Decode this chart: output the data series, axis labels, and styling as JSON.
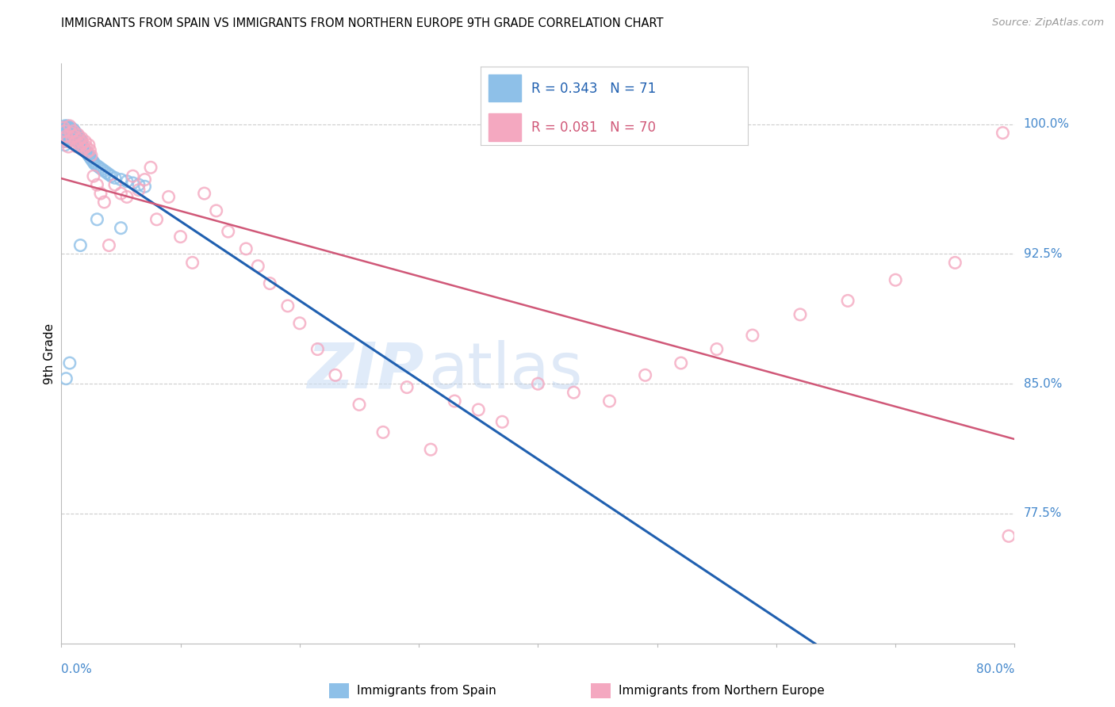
{
  "title": "IMMIGRANTS FROM SPAIN VS IMMIGRANTS FROM NORTHERN EUROPE 9TH GRADE CORRELATION CHART",
  "source": "Source: ZipAtlas.com",
  "ylabel": "9th Grade",
  "legend_r1": "R = 0.343",
  "legend_n1": "N = 71",
  "legend_r2": "R = 0.081",
  "legend_n2": "N = 70",
  "color_spain": "#8ec0e8",
  "color_northern": "#f4a8c0",
  "color_spain_line": "#2060b0",
  "color_northern_line": "#d05878",
  "color_label_blue": "#4488cc",
  "xlim": [
    0.0,
    0.8
  ],
  "ylim": [
    0.7,
    1.035
  ],
  "ytick_vals": [
    1.0,
    0.925,
    0.85,
    0.775
  ],
  "ytick_labels": [
    "100.0%",
    "92.5%",
    "85.0%",
    "77.5%"
  ],
  "spain_x": [
    0.001,
    0.001,
    0.002,
    0.002,
    0.002,
    0.003,
    0.003,
    0.003,
    0.003,
    0.004,
    0.004,
    0.004,
    0.005,
    0.005,
    0.005,
    0.006,
    0.006,
    0.006,
    0.007,
    0.007,
    0.007,
    0.008,
    0.008,
    0.008,
    0.009,
    0.009,
    0.01,
    0.01,
    0.01,
    0.011,
    0.011,
    0.012,
    0.012,
    0.013,
    0.013,
    0.014,
    0.014,
    0.015,
    0.015,
    0.016,
    0.016,
    0.017,
    0.018,
    0.019,
    0.02,
    0.021,
    0.022,
    0.023,
    0.024,
    0.025,
    0.026,
    0.027,
    0.028,
    0.03,
    0.032,
    0.034,
    0.036,
    0.038,
    0.04,
    0.042,
    0.045,
    0.05,
    0.055,
    0.06,
    0.065,
    0.07,
    0.004,
    0.007,
    0.016,
    0.03,
    0.05
  ],
  "spain_y": [
    0.998,
    0.994,
    0.997,
    0.993,
    0.99,
    0.999,
    0.996,
    0.992,
    0.988,
    0.998,
    0.995,
    0.991,
    0.999,
    0.996,
    0.993,
    0.998,
    0.995,
    0.992,
    0.997,
    0.994,
    0.991,
    0.998,
    0.995,
    0.992,
    0.996,
    0.993,
    0.997,
    0.994,
    0.991,
    0.996,
    0.993,
    0.995,
    0.992,
    0.994,
    0.991,
    0.993,
    0.99,
    0.992,
    0.989,
    0.991,
    0.988,
    0.99,
    0.987,
    0.986,
    0.985,
    0.984,
    0.983,
    0.982,
    0.981,
    0.98,
    0.979,
    0.978,
    0.977,
    0.976,
    0.975,
    0.974,
    0.973,
    0.972,
    0.971,
    0.97,
    0.969,
    0.968,
    0.967,
    0.966,
    0.965,
    0.964,
    0.853,
    0.862,
    0.93,
    0.945,
    0.94
  ],
  "northern_x": [
    0.002,
    0.003,
    0.004,
    0.005,
    0.006,
    0.007,
    0.008,
    0.009,
    0.01,
    0.011,
    0.012,
    0.013,
    0.014,
    0.015,
    0.016,
    0.017,
    0.018,
    0.019,
    0.02,
    0.021,
    0.022,
    0.023,
    0.024,
    0.025,
    0.027,
    0.03,
    0.033,
    0.036,
    0.04,
    0.045,
    0.05,
    0.055,
    0.06,
    0.065,
    0.07,
    0.075,
    0.08,
    0.09,
    0.1,
    0.11,
    0.12,
    0.13,
    0.14,
    0.155,
    0.165,
    0.175,
    0.19,
    0.2,
    0.215,
    0.23,
    0.25,
    0.27,
    0.29,
    0.31,
    0.33,
    0.35,
    0.37,
    0.4,
    0.43,
    0.46,
    0.49,
    0.52,
    0.55,
    0.58,
    0.62,
    0.66,
    0.7,
    0.75,
    0.79,
    0.795
  ],
  "northern_y": [
    0.998,
    0.996,
    0.993,
    0.99,
    0.987,
    0.999,
    0.995,
    0.992,
    0.996,
    0.993,
    0.99,
    0.987,
    0.994,
    0.991,
    0.988,
    0.992,
    0.989,
    0.986,
    0.99,
    0.987,
    0.984,
    0.988,
    0.985,
    0.982,
    0.97,
    0.965,
    0.96,
    0.955,
    0.93,
    0.965,
    0.96,
    0.958,
    0.97,
    0.962,
    0.968,
    0.975,
    0.945,
    0.958,
    0.935,
    0.92,
    0.96,
    0.95,
    0.938,
    0.928,
    0.918,
    0.908,
    0.895,
    0.885,
    0.87,
    0.855,
    0.838,
    0.822,
    0.848,
    0.812,
    0.84,
    0.835,
    0.828,
    0.85,
    0.845,
    0.84,
    0.855,
    0.862,
    0.87,
    0.878,
    0.89,
    0.898,
    0.91,
    0.92,
    0.995,
    0.762
  ]
}
